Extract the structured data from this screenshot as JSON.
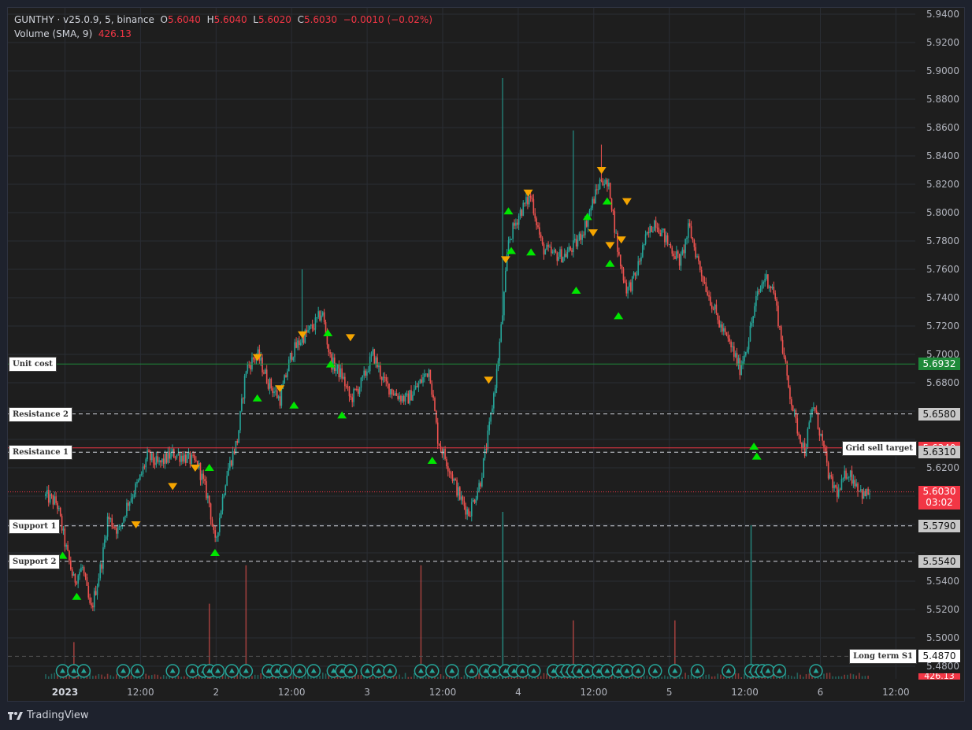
{
  "legend": {
    "symbol": "GUNTHY · v25.0.9, 5, binance",
    "o_label": "O",
    "o_value": "5.6040",
    "h_label": "H",
    "h_value": "5.6040",
    "l_label": "L",
    "l_value": "5.6020",
    "c_label": "C",
    "c_value": "5.6030",
    "change": "−0.0010 (−0.02%)",
    "volume_label": "Volume (SMA, 9)",
    "volume_value": "426.13"
  },
  "footer": {
    "brand": "TradingView"
  },
  "colors": {
    "up": "#26a69a",
    "down": "#ef5350",
    "buy_marker": "#00e600",
    "sell_marker": "#f5a500",
    "unit_cost": "#1e8a3a",
    "grid_sell": "#f23645",
    "level_line": "#d1d4dc",
    "background": "#1e1e1e"
  },
  "chart_data": {
    "type": "candlestick",
    "y_axis": {
      "ticks": [
        "5.9400",
        "5.9200",
        "5.9000",
        "5.8800",
        "5.8600",
        "5.8400",
        "5.8200",
        "5.8000",
        "5.7800",
        "5.7600",
        "5.7400",
        "5.7200",
        "5.7000",
        "5.6800",
        "5.6600",
        "5.6400",
        "5.6200",
        "5.6000",
        "5.5800",
        "5.5600",
        "5.5400",
        "5.5200",
        "5.5000",
        "5.4800"
      ],
      "range": [
        5.474,
        5.9445
      ]
    },
    "x_axis": {
      "ticks": [
        {
          "label": "2023",
          "bold": true,
          "t": 0.15
        },
        {
          "label": "12:00",
          "t": 0.65
        },
        {
          "label": "2",
          "t": 1.15
        },
        {
          "label": "12:00",
          "t": 1.65
        },
        {
          "label": "3",
          "t": 2.15
        },
        {
          "label": "12:00",
          "t": 2.65
        },
        {
          "label": "4",
          "t": 3.15
        },
        {
          "label": "12:00",
          "t": 3.65
        },
        {
          "label": "5",
          "t": 4.15
        },
        {
          "label": "12:00",
          "t": 4.65
        },
        {
          "label": "6",
          "t": 5.15
        },
        {
          "label": "12:00",
          "t": 5.65
        }
      ],
      "range": [
        0,
        5.9
      ]
    },
    "price_path": [
      [
        0.0,
        5.6
      ],
      [
        0.08,
        5.595
      ],
      [
        0.14,
        5.565
      ],
      [
        0.2,
        5.54
      ],
      [
        0.26,
        5.55
      ],
      [
        0.32,
        5.518
      ],
      [
        0.4,
        5.555
      ],
      [
        0.44,
        5.585
      ],
      [
        0.52,
        5.575
      ],
      [
        0.58,
        5.595
      ],
      [
        0.66,
        5.61
      ],
      [
        0.72,
        5.628
      ],
      [
        0.8,
        5.622
      ],
      [
        0.9,
        5.63
      ],
      [
        0.98,
        5.628
      ],
      [
        1.08,
        5.622
      ],
      [
        1.16,
        5.595
      ],
      [
        1.2,
        5.565
      ],
      [
        1.28,
        5.615
      ],
      [
        1.36,
        5.64
      ],
      [
        1.42,
        5.69
      ],
      [
        1.5,
        5.7
      ],
      [
        1.58,
        5.68
      ],
      [
        1.66,
        5.668
      ],
      [
        1.74,
        5.7
      ],
      [
        1.82,
        5.712
      ],
      [
        1.9,
        5.72
      ],
      [
        1.96,
        5.73
      ],
      [
        2.02,
        5.695
      ],
      [
        2.1,
        5.685
      ],
      [
        2.16,
        5.668
      ],
      [
        2.24,
        5.68
      ],
      [
        2.32,
        5.7
      ],
      [
        2.4,
        5.68
      ],
      [
        2.48,
        5.672
      ],
      [
        2.56,
        5.668
      ],
      [
        2.64,
        5.678
      ],
      [
        2.72,
        5.69
      ],
      [
        2.78,
        5.64
      ],
      [
        2.86,
        5.62
      ],
      [
        2.94,
        5.598
      ],
      [
        3.0,
        5.588
      ],
      [
        3.08,
        5.61
      ],
      [
        3.14,
        5.645
      ],
      [
        3.2,
        5.69
      ],
      [
        3.24,
        5.73
      ],
      [
        3.28,
        5.78
      ],
      [
        3.36,
        5.8
      ],
      [
        3.44,
        5.812
      ],
      [
        3.52,
        5.775
      ],
      [
        3.6,
        5.77
      ],
      [
        3.68,
        5.77
      ],
      [
        3.76,
        5.778
      ],
      [
        3.82,
        5.79
      ],
      [
        3.88,
        5.808
      ],
      [
        3.94,
        5.825
      ],
      [
        4.0,
        5.815
      ],
      [
        4.06,
        5.77
      ],
      [
        4.12,
        5.745
      ],
      [
        4.18,
        5.755
      ],
      [
        4.24,
        5.778
      ],
      [
        4.32,
        5.795
      ],
      [
        4.4,
        5.78
      ],
      [
        4.5,
        5.765
      ],
      [
        4.56,
        5.79
      ],
      [
        4.64,
        5.76
      ],
      [
        4.7,
        5.742
      ],
      [
        4.78,
        5.72
      ],
      [
        4.86,
        5.705
      ],
      [
        4.92,
        5.69
      ],
      [
        4.98,
        5.71
      ],
      [
        5.04,
        5.74
      ],
      [
        5.1,
        5.755
      ],
      [
        5.16,
        5.745
      ],
      [
        5.2,
        5.72
      ],
      [
        5.26,
        5.68
      ],
      [
        5.32,
        5.65
      ],
      [
        5.38,
        5.632
      ],
      [
        5.44,
        5.665
      ],
      [
        5.5,
        5.64
      ],
      [
        5.56,
        5.61
      ],
      [
        5.62,
        5.602
      ],
      [
        5.68,
        5.618
      ],
      [
        5.74,
        5.61
      ],
      [
        5.8,
        5.6
      ],
      [
        5.84,
        5.603
      ]
    ],
    "price_spikes": [
      {
        "t": 1.82,
        "high": 5.76
      },
      {
        "t": 3.24,
        "high": 5.895
      },
      {
        "t": 3.74,
        "high": 5.858
      },
      {
        "t": 3.94,
        "high": 5.848
      }
    ],
    "buy_markers": [
      {
        "t": 0.12,
        "price": 5.558
      },
      {
        "t": 0.22,
        "price": 5.529
      },
      {
        "t": 1.16,
        "price": 5.62
      },
      {
        "t": 1.2,
        "price": 5.56
      },
      {
        "t": 1.5,
        "price": 5.669
      },
      {
        "t": 1.76,
        "price": 5.664
      },
      {
        "t": 2.0,
        "price": 5.715
      },
      {
        "t": 2.02,
        "price": 5.693
      },
      {
        "t": 2.1,
        "price": 5.657
      },
      {
        "t": 2.74,
        "price": 5.625
      },
      {
        "t": 3.28,
        "price": 5.801
      },
      {
        "t": 3.3,
        "price": 5.773
      },
      {
        "t": 3.44,
        "price": 5.772
      },
      {
        "t": 3.76,
        "price": 5.745
      },
      {
        "t": 3.84,
        "price": 5.797
      },
      {
        "t": 3.98,
        "price": 5.808
      },
      {
        "t": 4.0,
        "price": 5.764
      },
      {
        "t": 4.06,
        "price": 5.727
      },
      {
        "t": 5.02,
        "price": 5.635
      },
      {
        "t": 5.04,
        "price": 5.628
      }
    ],
    "sell_markers": [
      {
        "t": 0.64,
        "price": 5.58
      },
      {
        "t": 0.9,
        "price": 5.607
      },
      {
        "t": 1.06,
        "price": 5.62
      },
      {
        "t": 1.5,
        "price": 5.698
      },
      {
        "t": 1.66,
        "price": 5.676
      },
      {
        "t": 1.82,
        "price": 5.714
      },
      {
        "t": 2.16,
        "price": 5.712
      },
      {
        "t": 3.14,
        "price": 5.682
      },
      {
        "t": 3.26,
        "price": 5.767
      },
      {
        "t": 3.42,
        "price": 5.814
      },
      {
        "t": 3.88,
        "price": 5.786
      },
      {
        "t": 3.94,
        "price": 5.83
      },
      {
        "t": 4.0,
        "price": 5.777
      },
      {
        "t": 4.08,
        "price": 5.781
      },
      {
        "t": 4.12,
        "price": 5.808
      }
    ],
    "volume_spikes": [
      {
        "t": 0.2,
        "v": 0.22
      },
      {
        "t": 1.16,
        "v": 0.45
      },
      {
        "t": 1.42,
        "v": 0.68
      },
      {
        "t": 2.66,
        "v": 0.68
      },
      {
        "t": 3.24,
        "v": 1.0
      },
      {
        "t": 3.74,
        "v": 0.35
      },
      {
        "t": 4.46,
        "v": 0.35
      },
      {
        "t": 5.0,
        "v": 0.92
      }
    ],
    "volume_markers_t": [
      0.12,
      0.2,
      0.27,
      0.55,
      0.65,
      0.9,
      1.04,
      1.12,
      1.16,
      1.22,
      1.32,
      1.42,
      1.58,
      1.64,
      1.7,
      1.8,
      1.9,
      2.04,
      2.1,
      2.16,
      2.28,
      2.36,
      2.44,
      2.66,
      2.74,
      2.88,
      3.02,
      3.12,
      3.18,
      3.26,
      3.32,
      3.38,
      3.46,
      3.6,
      3.66,
      3.7,
      3.74,
      3.78,
      3.84,
      3.92,
      3.98,
      4.06,
      4.12,
      4.2,
      4.32,
      4.46,
      4.62,
      4.84,
      5.0,
      5.04,
      5.08,
      5.12,
      5.2,
      5.46
    ],
    "levels": [
      {
        "name": "Unit cost",
        "price": 5.6932,
        "label": "5.6932",
        "style": "solid",
        "color": "#1e8a3a",
        "badge_bg": "#1e8a3a",
        "badge_fg": "#ffffff",
        "tag_side": "left"
      },
      {
        "name": "Resistance 2",
        "price": 5.658,
        "label": "5.6580",
        "style": "dashed",
        "color": "#d1d4dc",
        "badge_bg": "#c8c8c8",
        "badge_fg": "#111111",
        "tag_side": "left"
      },
      {
        "name": "Grid sell target",
        "price": 5.634,
        "label": "5.6340",
        "style": "solid",
        "color": "#f23645",
        "badge_bg": "#f23645",
        "badge_fg": "#ffffff",
        "tag_side": "right"
      },
      {
        "name": "Resistance 1",
        "price": 5.631,
        "label": "5.6310",
        "style": "dashed",
        "color": "#d1d4dc",
        "badge_bg": "#c8c8c8",
        "badge_fg": "#111111",
        "tag_side": "left"
      },
      {
        "name": "Support 1",
        "price": 5.579,
        "label": "5.5790",
        "style": "dashed",
        "color": "#d1d4dc",
        "badge_bg": "#c8c8c8",
        "badge_fg": "#111111",
        "tag_side": "left"
      },
      {
        "name": "Support 2",
        "price": 5.554,
        "label": "5.5540",
        "style": "dashed",
        "color": "#d1d4dc",
        "badge_bg": "#c8c8c8",
        "badge_fg": "#111111",
        "tag_side": "left"
      },
      {
        "name": "Long term S1",
        "price": 5.487,
        "label": "5.4870",
        "style": "dashed",
        "color": "#555555",
        "badge_bg": "#ffffff",
        "badge_fg": "#111111",
        "tag_side": "right"
      }
    ],
    "current_price": {
      "price": 5.603,
      "label": "5.6030",
      "countdown": "03:02",
      "color": "#f23645"
    },
    "volume_badge": {
      "label": "426.13"
    }
  }
}
